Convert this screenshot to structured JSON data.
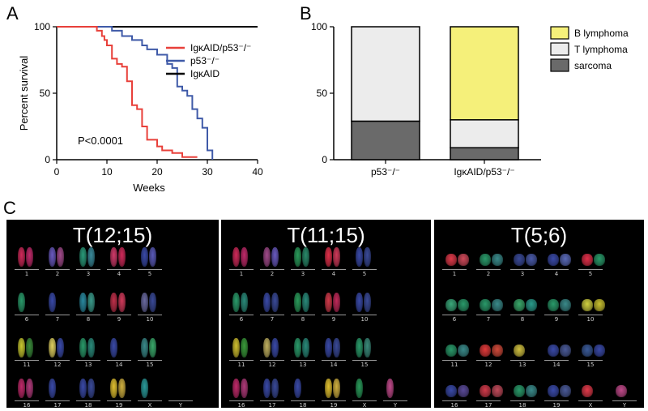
{
  "panels": {
    "A": "A",
    "B": "B",
    "C": "C"
  },
  "chart_data": [
    {
      "type": "line",
      "id": "A",
      "title": "",
      "xlabel": "Weeks",
      "ylabel": "Percent survival",
      "xlim": [
        0,
        40
      ],
      "ylim": [
        0,
        100
      ],
      "xticks": [
        0,
        10,
        20,
        30,
        40
      ],
      "yticks": [
        0,
        50,
        100
      ],
      "annotation": "P<0.0001",
      "legend_position": "top-right",
      "series": [
        {
          "name": "IgκAID/p53⁻/⁻",
          "color": "#e8403a",
          "x": [
            0,
            7,
            8,
            9,
            9.5,
            10,
            11,
            12,
            13,
            14,
            15,
            16,
            17,
            18,
            20,
            21,
            22,
            23,
            25,
            28
          ],
          "y": [
            100,
            100,
            97,
            93,
            90,
            86,
            76,
            72,
            70,
            59,
            41,
            38,
            25,
            15,
            10,
            7,
            7,
            5,
            2,
            2
          ]
        },
        {
          "name": "p53⁻/⁻",
          "color": "#3f5aa8",
          "x": [
            0,
            10,
            11,
            13,
            15,
            17,
            18,
            20,
            22,
            23,
            24,
            25,
            26,
            27,
            28,
            29,
            30,
            31
          ],
          "y": [
            100,
            100,
            97,
            93,
            90,
            86,
            83,
            79,
            72,
            69,
            55,
            52,
            48,
            38,
            31,
            24,
            7,
            0
          ]
        },
        {
          "name": "IgκAID",
          "color": "#000000",
          "x": [
            0,
            40
          ],
          "y": [
            100,
            100
          ]
        }
      ]
    },
    {
      "type": "bar",
      "id": "B",
      "stacked": true,
      "title": "",
      "xlabel": "",
      "ylabel": "",
      "ylim": [
        0,
        100
      ],
      "yticks": [
        0,
        50,
        100
      ],
      "categories": [
        "p53⁻/⁻",
        "IgκAID/p53⁻/⁻"
      ],
      "legend_position": "right",
      "series": [
        {
          "name": "sarcoma",
          "color": "#6a6a6a",
          "values": [
            29,
            9
          ]
        },
        {
          "name": "T lymphoma",
          "color": "#ececec",
          "values": [
            71,
            21
          ]
        },
        {
          "name": "B lymphoma",
          "color": "#f5f07a",
          "values": [
            0,
            70
          ]
        }
      ]
    }
  ],
  "karyotypes": [
    {
      "title": "T(12;15)",
      "rows": [
        [
          {
            "label": "1",
            "colors": [
              "#d02a5a",
              "#c02a6a"
            ]
          },
          {
            "label": "2",
            "colors": [
              "#6a5ac0",
              "#a04a8a"
            ]
          },
          {
            "label": "3",
            "colors": [
              "#2a9a7a",
              "#3a8a9a"
            ]
          },
          {
            "label": "4",
            "colors": [
              "#d03a6a",
              "#d02a5a"
            ]
          },
          {
            "label": "5",
            "colors": [
              "#3a4aa8",
              "#5a5ab8"
            ]
          }
        ],
        [
          {
            "label": "6",
            "colors": [
              "#2a9a6a",
              "#1a1a1a"
            ]
          },
          {
            "label": "7",
            "colors": [
              "#3a4aa8",
              "#1a1a1a"
            ]
          },
          {
            "label": "8",
            "colors": [
              "#2a8aa0",
              "#3a9a8a"
            ]
          },
          {
            "label": "9",
            "colors": [
              "#c0304a",
              "#d03a5a"
            ]
          },
          {
            "label": "10",
            "colors": [
              "#6a6aa0",
              "#3a4a98"
            ]
          }
        ],
        [
          {
            "label": "11",
            "colors": [
              "#c8c830",
              "#3a8a3a"
            ]
          },
          {
            "label": "12",
            "colors": [
              "#e0d060",
              "#3a4aa8"
            ]
          },
          {
            "label": "13",
            "colors": [
              "#2a9a6a",
              "#2a8a7a"
            ]
          },
          {
            "label": "14",
            "colors": [
              "#3a4aa8",
              "#1a1a1a"
            ]
          },
          {
            "label": "15",
            "colors": [
              "#3a8a8a",
              "#3aa86a"
            ]
          }
        ],
        [
          {
            "label": "16",
            "colors": [
              "#c02a6a",
              "#b03a7a"
            ]
          },
          {
            "label": "17",
            "colors": [
              "#3a4aa8",
              "#1a1a1a"
            ]
          },
          {
            "label": "18",
            "colors": [
              "#3a4aa8",
              "#3a4a98"
            ]
          },
          {
            "label": "19",
            "colors": [
              "#e0c030",
              "#d0b040"
            ]
          },
          {
            "label": "X",
            "colors": [
              "#2a9a9a",
              "#1a1a1a"
            ]
          },
          {
            "label": "Y",
            "colors": [
              "#1a1a1a",
              "#1a1a1a"
            ]
          }
        ]
      ]
    },
    {
      "title": "T(11;15)",
      "rows": [
        [
          {
            "label": "1",
            "colors": [
              "#d02a5a",
              "#c02a6a"
            ]
          },
          {
            "label": "2",
            "colors": [
              "#a04a8a",
              "#6a5ac0"
            ]
          },
          {
            "label": "3",
            "colors": [
              "#2a9a5a",
              "#2a8a6a"
            ]
          },
          {
            "label": "4",
            "colors": [
              "#e0304a",
              "#d03a5a"
            ]
          },
          {
            "label": "5",
            "colors": [
              "#3a4aa8",
              "#3a4a98"
            ]
          }
        ],
        [
          {
            "label": "6",
            "colors": [
              "#2a9a6a",
              "#2a8a7a"
            ]
          },
          {
            "label": "7",
            "colors": [
              "#3a4aa8",
              "#3a4a98"
            ]
          },
          {
            "label": "8",
            "colors": [
              "#2a9a5a",
              "#2a8a7a"
            ]
          },
          {
            "label": "9",
            "colors": [
              "#d03a4a",
              "#c02a5a"
            ]
          },
          {
            "label": "10",
            "colors": [
              "#3a4aa8",
              "#3a4a98"
            ]
          }
        ],
        [
          {
            "label": "11",
            "colors": [
              "#d0c030",
              "#3a9a3a"
            ]
          },
          {
            "label": "12",
            "colors": [
              "#c0b060",
              "#3a4aa8"
            ]
          },
          {
            "label": "13",
            "colors": [
              "#2a9a6a",
              "#2a8a7a"
            ]
          },
          {
            "label": "14",
            "colors": [
              "#3a4aa8",
              "#3a4a98"
            ]
          },
          {
            "label": "15",
            "colors": [
              "#2a9a6a",
              "#3a8a7a"
            ]
          }
        ],
        [
          {
            "label": "16",
            "colors": [
              "#c02a6a",
              "#b03a7a"
            ]
          },
          {
            "label": "17",
            "colors": [
              "#3a4aa8",
              "#3a4a98"
            ]
          },
          {
            "label": "18",
            "colors": [
              "#3a4aa8",
              "#1a1a1a"
            ]
          },
          {
            "label": "19",
            "colors": [
              "#e0c030",
              "#d0b040"
            ]
          },
          {
            "label": "X",
            "colors": [
              "#2a9a5a",
              "#1a1a1a"
            ]
          },
          {
            "label": "Y",
            "colors": [
              "#c04a8a",
              "#1a1a1a"
            ]
          }
        ]
      ]
    },
    {
      "title": "T(5;6)",
      "rows": [
        [
          {
            "label": "1",
            "colors": [
              "#e03a4a",
              "#d04a5a"
            ]
          },
          {
            "label": "2",
            "colors": [
              "#2a9a6a",
              "#3a8a8a"
            ]
          },
          {
            "label": "3",
            "colors": [
              "#3a4a98",
              "#4a5aa8"
            ]
          },
          {
            "label": "4",
            "colors": [
              "#3a4aa8",
              "#5a6ab8"
            ]
          },
          {
            "label": "5",
            "colors": [
              "#e0304a",
              "#2a9a6a"
            ]
          }
        ],
        [
          {
            "label": "6",
            "colors": [
              "#3aa87a",
              "#2a9a6a"
            ]
          },
          {
            "label": "7",
            "colors": [
              "#2a9a6a",
              "#3a8a8a"
            ]
          },
          {
            "label": "8",
            "colors": [
              "#3aa86a",
              "#2a9a8a"
            ]
          },
          {
            "label": "9",
            "colors": [
              "#2a9a6a",
              "#3a8a8a"
            ]
          },
          {
            "label": "10",
            "colors": [
              "#d0d040",
              "#c8c030"
            ]
          }
        ],
        [
          {
            "label": "11",
            "colors": [
              "#2a9a6a",
              "#3a8a8a"
            ]
          },
          {
            "label": "12",
            "colors": [
              "#e03a3a",
              "#d04a3a"
            ]
          },
          {
            "label": "13",
            "colors": [
              "#d0c040",
              "#1a1a1a"
            ]
          },
          {
            "label": "14",
            "colors": [
              "#3a4aa8",
              "#4a5a98"
            ]
          },
          {
            "label": "15",
            "colors": [
              "#3a5a98",
              "#3a4aa8"
            ]
          }
        ],
        [
          {
            "label": "16",
            "colors": [
              "#3a4aa8",
              "#5a4a98"
            ]
          },
          {
            "label": "17",
            "colors": [
              "#d03a4a",
              "#c04a5a"
            ]
          },
          {
            "label": "18",
            "colors": [
              "#2a9a6a",
              "#3a8a8a"
            ]
          },
          {
            "label": "19",
            "colors": [
              "#3a4aa8",
              "#4a5a98"
            ]
          },
          {
            "label": "X",
            "colors": [
              "#e03a4a",
              "#1a1a1a"
            ]
          },
          {
            "label": "Y",
            "colors": [
              "#c04a8a",
              "#1a1a1a"
            ]
          }
        ]
      ]
    }
  ]
}
